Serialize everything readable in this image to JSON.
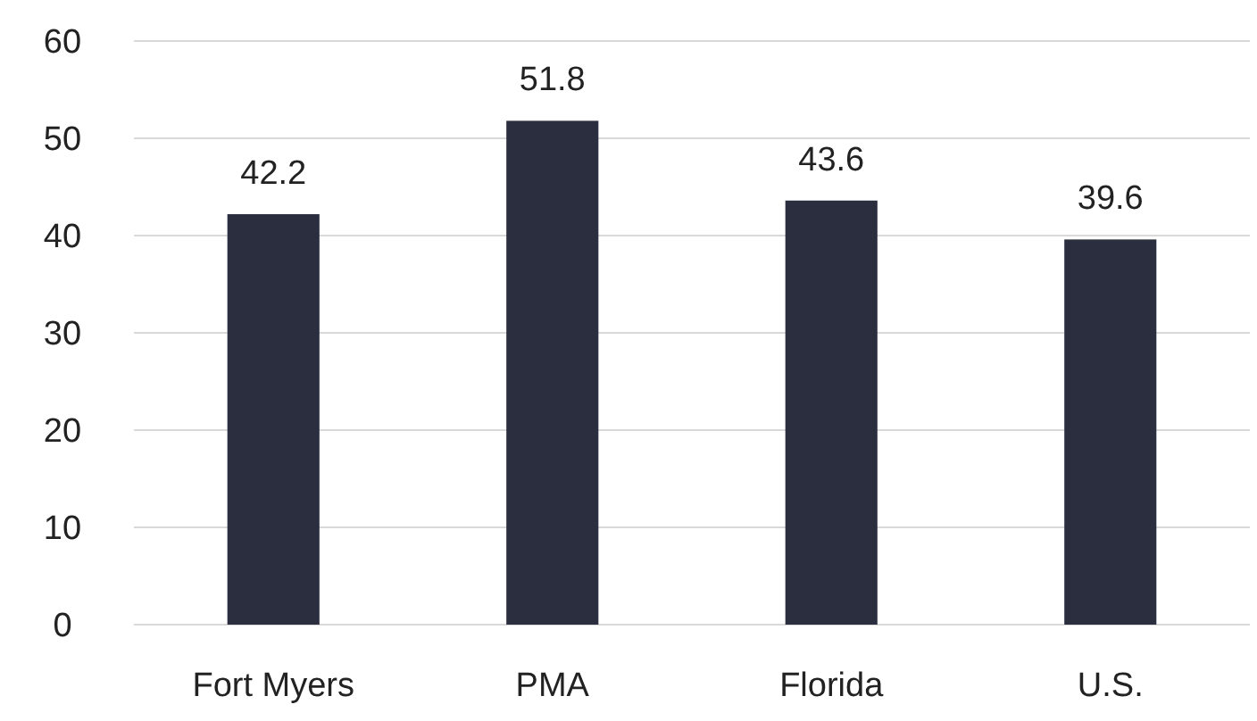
{
  "chart_data": {
    "type": "bar",
    "categories": [
      "Fort Myers",
      "PMA",
      "Florida",
      "U.S."
    ],
    "values": [
      42.2,
      51.8,
      43.6,
      39.6
    ],
    "color": "#2b2e3e",
    "ylim": [
      0,
      60
    ],
    "yticks": [
      0,
      10,
      20,
      30,
      40,
      50,
      60
    ],
    "grid": "y",
    "data_labels": true
  }
}
